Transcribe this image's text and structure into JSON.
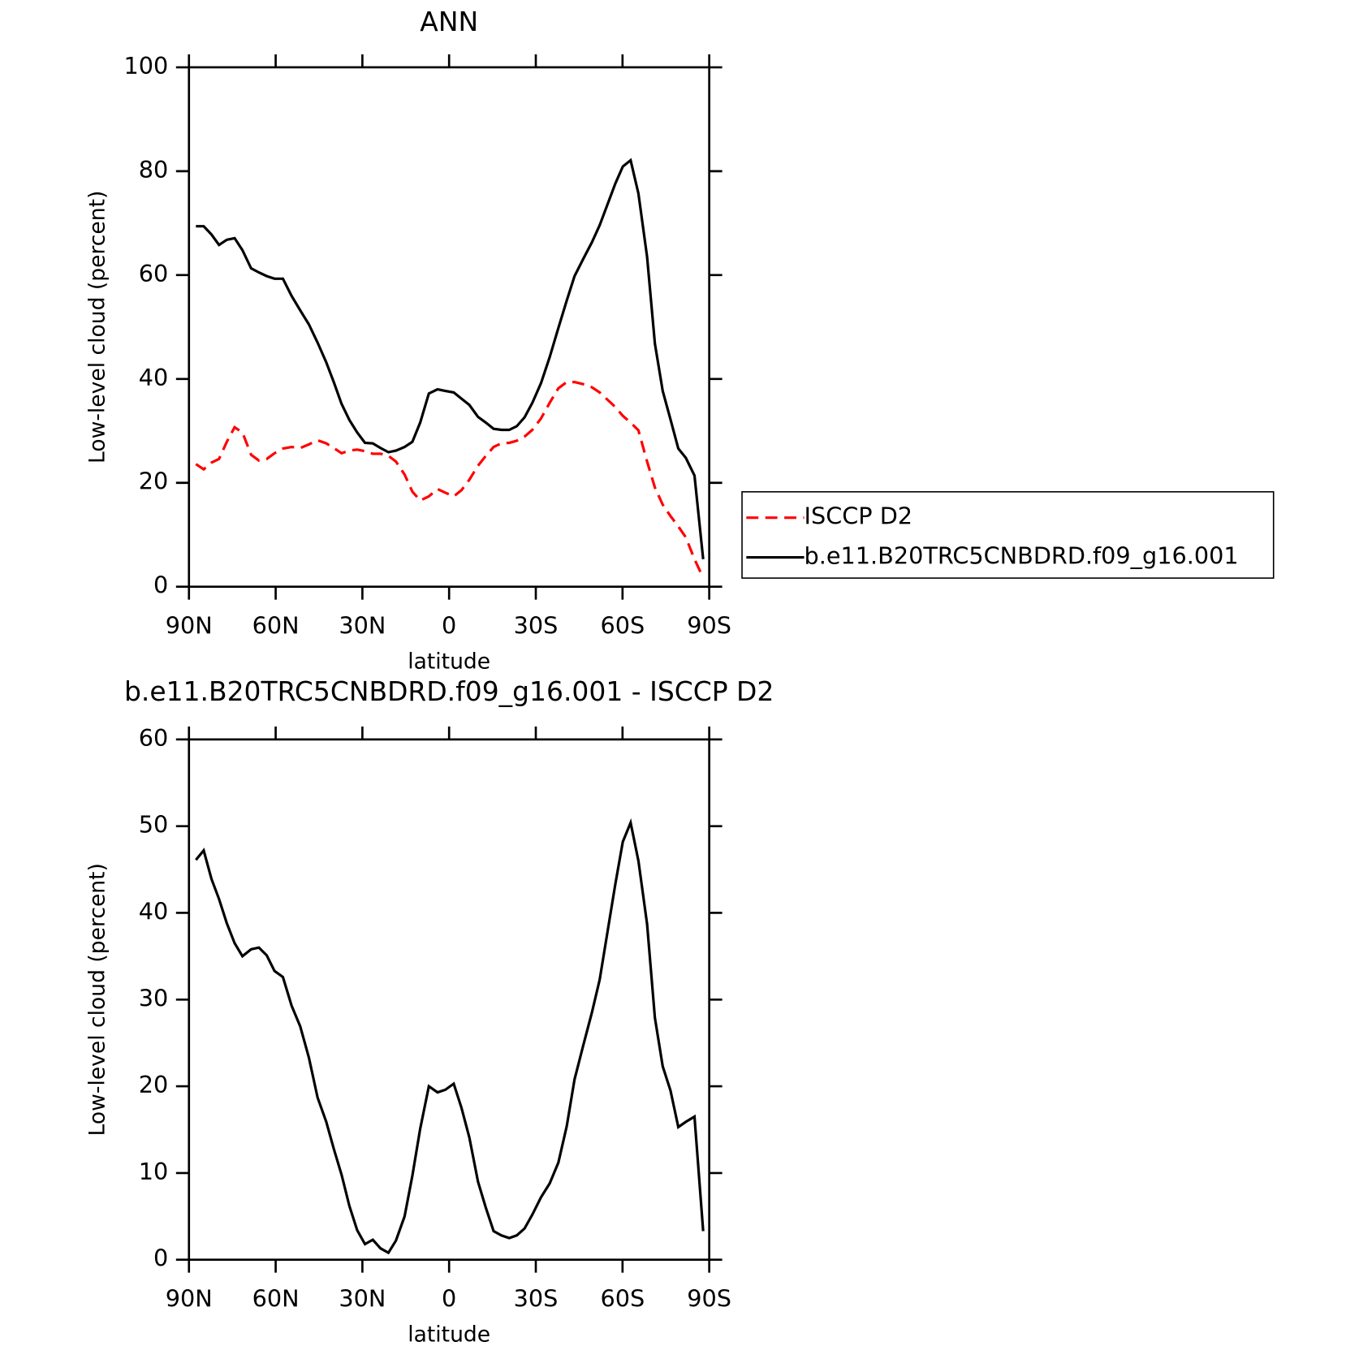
{
  "chart_data": [
    {
      "type": "line",
      "title": "ANN",
      "x_label": "latitude",
      "y_label": "Low-level cloud (percent)",
      "x": [
        87.6,
        84.9,
        82.2,
        79.6,
        76.9,
        74.2,
        71.5,
        68.5,
        65.8,
        63.1,
        60.4,
        57.5,
        54.5,
        51.5,
        48.5,
        45.5,
        42.5,
        39.9,
        37.2,
        34.5,
        31.8,
        29.1,
        26.4,
        23.7,
        21.0,
        18.4,
        15.4,
        12.7,
        10.0,
        7.0,
        4.0,
        1.3,
        -1.6,
        -4.3,
        -7.0,
        -10.0,
        -12.7,
        -15.4,
        -18.1,
        -20.8,
        -23.4,
        -26.1,
        -28.8,
        -31.8,
        -34.8,
        -37.8,
        -40.7,
        -43.4,
        -46.4,
        -49.4,
        -52.1,
        -54.8,
        -57.5,
        -60.1,
        -62.8,
        -65.5,
        -68.5,
        -71.2,
        -73.9,
        -76.6,
        -79.3,
        -81.9,
        -84.9,
        -87.9
      ],
      "series": [
        {
          "name": "ISCCP D2",
          "color": "#ff0000",
          "line_style": "dashed",
          "values": [
            23.6,
            22.6,
            23.9,
            24.6,
            27.9,
            30.7,
            29.7,
            25.4,
            24.3,
            24.6,
            25.7,
            26.6,
            26.9,
            26.7,
            27.4,
            28.2,
            27.6,
            26.7,
            25.7,
            26.2,
            26.4,
            26.1,
            25.6,
            25.6,
            25.2,
            24.1,
            21.6,
            18.3,
            16.6,
            17.4,
            18.8,
            18.1,
            17.4,
            18.6,
            20.6,
            23.3,
            25.2,
            26.9,
            27.6,
            27.7,
            28.1,
            28.9,
            30.2,
            32.4,
            35.4,
            38.2,
            39.4,
            39.4,
            39.0,
            38.4,
            37.4,
            36.0,
            34.6,
            32.9,
            31.6,
            30.1,
            24.1,
            19.1,
            15.8,
            13.6,
            11.6,
            9.5,
            5.3,
            1.7
          ]
        },
        {
          "name": "b.e11.B20TRC5CNBDRD.f09_g16.001",
          "color": "#000000",
          "line_style": "solid",
          "values": [
            69.4,
            69.4,
            67.8,
            65.8,
            66.8,
            67.1,
            64.8,
            61.3,
            60.5,
            59.8,
            59.3,
            59.3,
            56.0,
            53.2,
            50.5,
            47.0,
            43.2,
            39.4,
            35.2,
            32.1,
            29.7,
            27.7,
            27.6,
            26.7,
            25.9,
            26.2,
            26.9,
            27.9,
            31.6,
            37.2,
            38.0,
            37.7,
            37.4,
            36.2,
            35.0,
            32.7,
            31.6,
            30.4,
            30.2,
            30.2,
            30.9,
            32.6,
            35.4,
            39.2,
            44.2,
            49.8,
            55.1,
            59.8,
            63.1,
            66.3,
            69.6,
            73.6,
            77.6,
            80.9,
            82.1,
            75.7,
            63.5,
            46.8,
            37.7,
            32.2,
            26.6,
            24.8,
            21.4,
            5.3
          ]
        }
      ],
      "xlim": [
        90,
        -90
      ],
      "xticks": [
        {
          "value": 90,
          "label": "90N"
        },
        {
          "value": 60,
          "label": "60N"
        },
        {
          "value": 30,
          "label": "30N"
        },
        0,
        {
          "value": -30,
          "label": "30S"
        },
        {
          "value": -60,
          "label": "60S"
        },
        {
          "value": -90,
          "label": "90S"
        }
      ],
      "ylim": [
        0,
        100
      ],
      "yticks": [
        0,
        20,
        40,
        60,
        80,
        100
      ],
      "legend": "outside-right"
    },
    {
      "type": "line",
      "title": "b.e11.B20TRC5CNBDRD.f09_g16.001 - ISCCP D2",
      "x_label": "latitude",
      "y_label": "Low-level cloud (percent)",
      "x": [
        87.6,
        84.9,
        82.2,
        79.6,
        76.9,
        74.2,
        71.5,
        68.5,
        65.8,
        63.1,
        60.4,
        57.5,
        54.5,
        51.5,
        48.5,
        45.5,
        42.5,
        39.9,
        37.2,
        34.5,
        31.8,
        29.1,
        26.4,
        23.7,
        21.0,
        18.4,
        15.4,
        12.7,
        10.0,
        7.0,
        4.0,
        1.3,
        -1.6,
        -4.3,
        -7.0,
        -10.0,
        -12.7,
        -15.4,
        -18.1,
        -20.8,
        -23.4,
        -26.1,
        -28.8,
        -31.8,
        -34.8,
        -37.8,
        -40.7,
        -43.4,
        -46.4,
        -49.4,
        -52.1,
        -54.8,
        -57.5,
        -60.1,
        -62.8,
        -65.5,
        -68.5,
        -71.2,
        -73.9,
        -76.6,
        -79.3,
        -81.9,
        -84.9,
        -87.9
      ],
      "series": [
        {
          "color": "#000000",
          "line_style": "solid",
          "values": [
            46.1,
            47.2,
            43.9,
            41.6,
            38.8,
            36.5,
            35.0,
            35.8,
            36.0,
            35.1,
            33.3,
            32.6,
            29.3,
            26.9,
            23.3,
            18.7,
            15.9,
            12.8,
            9.8,
            6.2,
            3.4,
            1.8,
            2.3,
            1.3,
            0.8,
            2.2,
            5.0,
            9.7,
            15.1,
            20.0,
            19.3,
            19.6,
            20.3,
            17.5,
            14.1,
            9.0,
            6.0,
            3.3,
            2.8,
            2.5,
            2.8,
            3.6,
            5.2,
            7.2,
            8.8,
            11.2,
            15.4,
            20.8,
            24.7,
            28.5,
            32.3,
            37.8,
            43.3,
            48.2,
            50.4,
            46.0,
            38.7,
            27.9,
            22.3,
            19.5,
            15.3,
            15.9,
            16.5,
            3.3
          ]
        }
      ],
      "xlim": [
        90,
        -90
      ],
      "xticks": [
        {
          "value": 90,
          "label": "90N"
        },
        {
          "value": 60,
          "label": "60N"
        },
        {
          "value": 30,
          "label": "30N"
        },
        0,
        {
          "value": -30,
          "label": "30S"
        },
        {
          "value": -60,
          "label": "60S"
        },
        {
          "value": -90,
          "label": "90S"
        }
      ],
      "ylim": [
        0,
        60
      ],
      "yticks": [
        0,
        10,
        20,
        30,
        40,
        50,
        60
      ]
    }
  ]
}
